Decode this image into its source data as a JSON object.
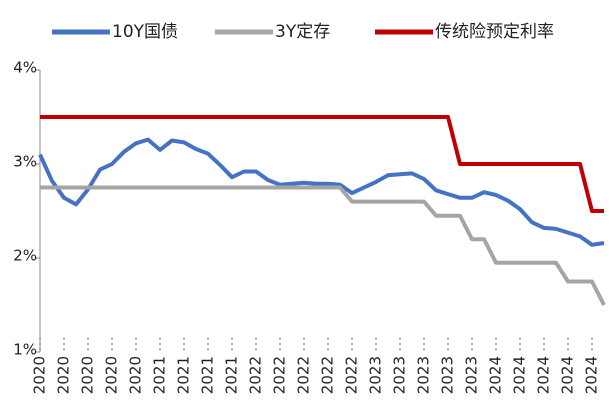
{
  "chart_data": {
    "type": "line",
    "categories": [
      "2020",
      null,
      "2020",
      null,
      "2020",
      null,
      "2020",
      null,
      "2020",
      null,
      "2021",
      null,
      "2021",
      null,
      "2021",
      null,
      "2021",
      null,
      "2022",
      null,
      "2022",
      null,
      "2022",
      null,
      "2022",
      null,
      "2022",
      null,
      "2023",
      null,
      "2023",
      null,
      "2023",
      null,
      "2023",
      null,
      "2023",
      null,
      "2024",
      null,
      "2024",
      null,
      "2024",
      null,
      "2024",
      null,
      "2024",
      null
    ],
    "series": [
      {
        "name": "10Y国债",
        "color": "#4472c4",
        "values": [
          3.1,
          2.82,
          2.64,
          2.57,
          2.73,
          2.94,
          3.0,
          3.13,
          3.22,
          3.26,
          3.15,
          3.25,
          3.23,
          3.16,
          3.11,
          2.99,
          2.86,
          2.92,
          2.92,
          2.83,
          2.78,
          2.79,
          2.8,
          2.79,
          2.79,
          2.78,
          2.69,
          2.75,
          2.81,
          2.88,
          2.89,
          2.9,
          2.84,
          2.72,
          2.68,
          2.64,
          2.64,
          2.7,
          2.67,
          2.61,
          2.52,
          2.38,
          2.32,
          2.31,
          2.27,
          2.23,
          2.14,
          2.16
        ]
      },
      {
        "name": "3Y定存",
        "color": "#a5a5a5",
        "values": [
          2.75,
          2.75,
          2.75,
          2.75,
          2.75,
          2.75,
          2.75,
          2.75,
          2.75,
          2.75,
          2.75,
          2.75,
          2.75,
          2.75,
          2.75,
          2.75,
          2.75,
          2.75,
          2.75,
          2.75,
          2.75,
          2.75,
          2.75,
          2.75,
          2.75,
          2.75,
          2.6,
          2.6,
          2.6,
          2.6,
          2.6,
          2.6,
          2.6,
          2.45,
          2.45,
          2.45,
          2.2,
          2.2,
          1.95,
          1.95,
          1.95,
          1.95,
          1.95,
          1.95,
          1.75,
          1.75,
          1.75,
          1.5
        ]
      },
      {
        "name": "传统险预定利率",
        "color": "#c00000",
        "values": [
          3.5,
          3.5,
          3.5,
          3.5,
          3.5,
          3.5,
          3.5,
          3.5,
          3.5,
          3.5,
          3.5,
          3.5,
          3.5,
          3.5,
          3.5,
          3.5,
          3.5,
          3.5,
          3.5,
          3.5,
          3.5,
          3.5,
          3.5,
          3.5,
          3.5,
          3.5,
          3.5,
          3.5,
          3.5,
          3.5,
          3.5,
          3.5,
          3.5,
          3.5,
          3.5,
          3.0,
          3.0,
          3.0,
          3.0,
          3.0,
          3.0,
          3.0,
          3.0,
          3.0,
          3.0,
          3.0,
          2.5,
          2.5
        ]
      }
    ],
    "ylim": [
      1,
      4
    ],
    "yticks": [
      {
        "value": 1,
        "label": "1%"
      },
      {
        "value": 2,
        "label": "2%"
      },
      {
        "value": 3,
        "label": "3%"
      },
      {
        "value": 4,
        "label": "4%"
      }
    ],
    "legend": "top"
  }
}
